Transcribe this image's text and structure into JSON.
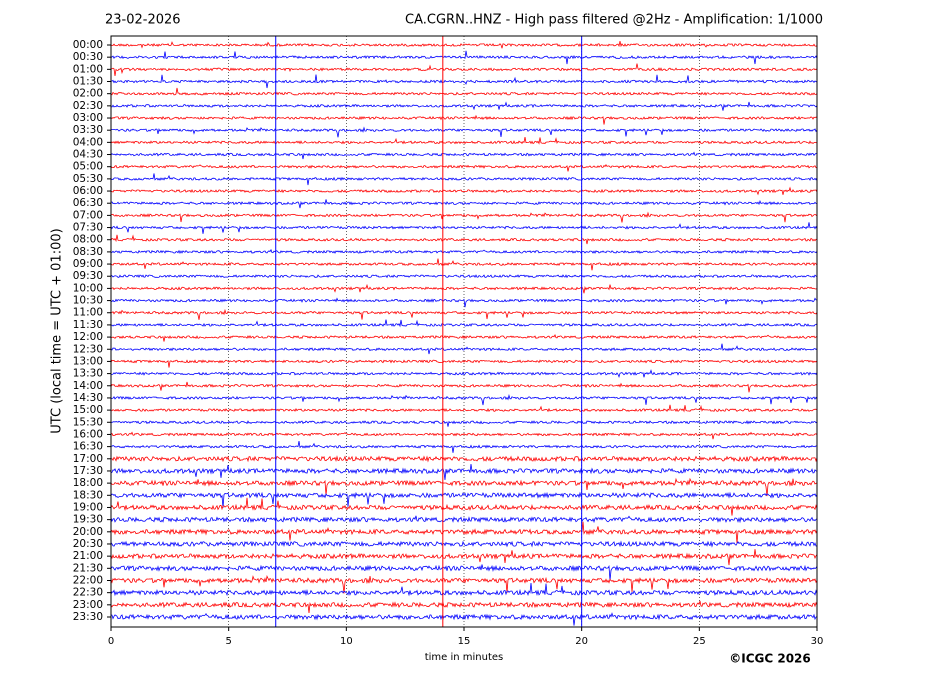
{
  "chart_data": {
    "type": "helicorder",
    "date": "23-02-2026",
    "title": "CA.CGRN..HNZ - High pass filtered @2Hz - Amplification: 1/1000",
    "y_label": "UTC (local time = UTC + 01:00)",
    "x_label": "time in minutes",
    "copyright": "©ICGC 2026",
    "xlim": [
      0,
      30
    ],
    "xticks": [
      0,
      5,
      10,
      15,
      20,
      25,
      30
    ],
    "grid": true,
    "colors": [
      "#ff0000",
      "#0000ff"
    ],
    "markers": [
      {
        "x": 7,
        "color": "#0000ff"
      },
      {
        "x": 14.1,
        "color": "#ff0000"
      },
      {
        "x": 20,
        "color": "#0000ff"
      }
    ],
    "categories": [
      "00:00",
      "00:30",
      "01:00",
      "01:30",
      "02:00",
      "02:30",
      "03:00",
      "03:30",
      "04:00",
      "04:30",
      "05:00",
      "05:30",
      "06:00",
      "06:30",
      "07:00",
      "07:30",
      "08:00",
      "08:30",
      "09:00",
      "09:30",
      "10:00",
      "10:30",
      "11:00",
      "11:30",
      "12:00",
      "12:30",
      "13:00",
      "13:30",
      "14:00",
      "14:30",
      "15:00",
      "15:30",
      "16:00",
      "16:30",
      "17:00",
      "17:30",
      "18:00",
      "18:30",
      "19:00",
      "19:30",
      "20:00",
      "20:30",
      "21:00",
      "21:30",
      "22:00",
      "22:30",
      "23:00",
      "23:30"
    ]
  }
}
